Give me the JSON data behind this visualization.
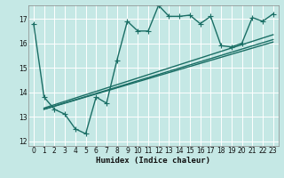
{
  "xlabel": "Humidex (Indice chaleur)",
  "background_color": "#c5e8e5",
  "grid_color": "#ffffff",
  "line_color": "#1a6e65",
  "xlim": [
    -0.5,
    23.5
  ],
  "ylim": [
    11.8,
    17.55
  ],
  "yticks": [
    12,
    13,
    14,
    15,
    16,
    17
  ],
  "xticks": [
    0,
    1,
    2,
    3,
    4,
    5,
    6,
    7,
    8,
    9,
    10,
    11,
    12,
    13,
    14,
    15,
    16,
    17,
    18,
    19,
    20,
    21,
    22,
    23
  ],
  "main_line": [
    [
      0,
      16.8
    ],
    [
      1,
      13.8
    ],
    [
      2,
      13.3
    ],
    [
      3,
      13.1
    ],
    [
      4,
      12.5
    ],
    [
      5,
      12.3
    ],
    [
      6,
      13.8
    ],
    [
      7,
      13.55
    ],
    [
      8,
      15.3
    ],
    [
      9,
      16.9
    ],
    [
      10,
      16.5
    ],
    [
      11,
      16.5
    ],
    [
      12,
      17.55
    ],
    [
      13,
      17.1
    ],
    [
      14,
      17.1
    ],
    [
      15,
      17.15
    ],
    [
      16,
      16.8
    ],
    [
      17,
      17.1
    ],
    [
      18,
      15.9
    ],
    [
      19,
      15.85
    ],
    [
      20,
      16.0
    ],
    [
      21,
      17.05
    ],
    [
      22,
      16.9
    ],
    [
      23,
      17.2
    ]
  ],
  "reg_lines": [
    [
      [
        1,
        13.3
      ],
      [
        23,
        16.05
      ]
    ],
    [
      [
        1,
        13.3
      ],
      [
        23,
        16.15
      ]
    ],
    [
      [
        1,
        13.35
      ],
      [
        23,
        16.35
      ]
    ]
  ],
  "markersize": 4,
  "linewidth": 1.0
}
